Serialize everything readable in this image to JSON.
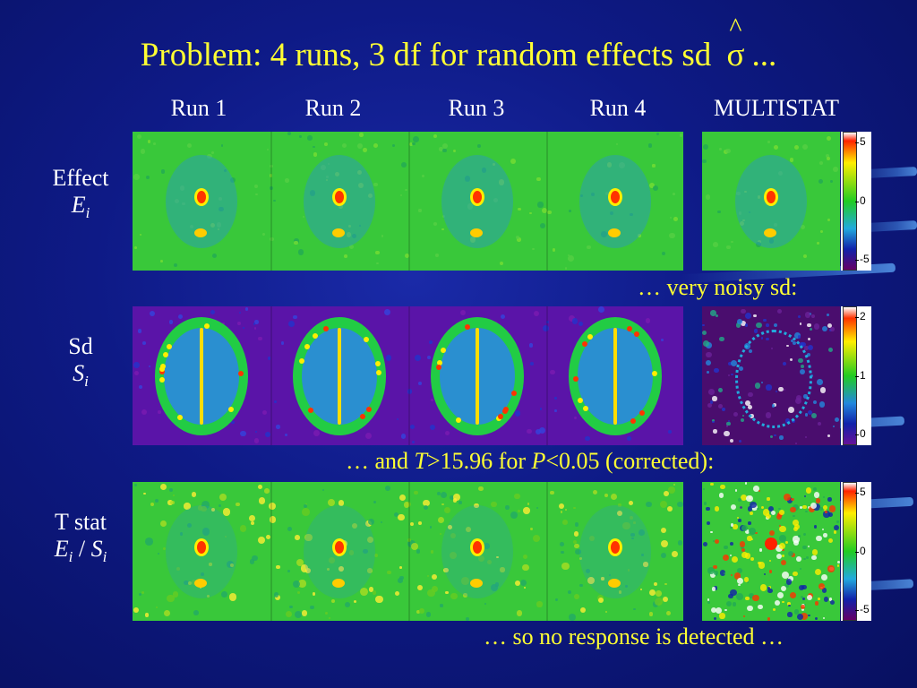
{
  "title": {
    "prefix": "Problem: 4 runs, 3 df for random effects sd",
    "sigma": "σ",
    "hat": "^",
    "suffix": "..."
  },
  "columns": [
    "Run 1",
    "Run 2",
    "Run 3",
    "Run 4",
    "MULTISTAT"
  ],
  "rows": [
    {
      "label": "Effect",
      "symbol": "E",
      "sub": "i"
    },
    {
      "label": "Sd",
      "symbol": "S",
      "sub": "i"
    },
    {
      "label": "T stat",
      "symbol_a": "E",
      "sub_a": "i",
      "divider": " / ",
      "symbol_b": "S",
      "sub_b": "i"
    }
  ],
  "notes": {
    "noisy": "… very noisy sd:",
    "threshold_prefix": "…  and ",
    "threshold_T": "T",
    "threshold_mid": ">15.96 for ",
    "threshold_P": "P",
    "threshold_suffix": "<0.05 (corrected):",
    "final": "… so no response is detected …"
  },
  "colorbars": [
    {
      "ticks": [
        "5",
        "0",
        "-5"
      ]
    },
    {
      "ticks": [
        "2",
        "1",
        "0"
      ]
    },
    {
      "ticks": [
        "5",
        "0",
        "-5"
      ]
    }
  ],
  "colors": {
    "title": "#ffff33",
    "background": "#0e1a86",
    "effect_bg": "#33cc33",
    "sd_bg": "#6611aa"
  }
}
